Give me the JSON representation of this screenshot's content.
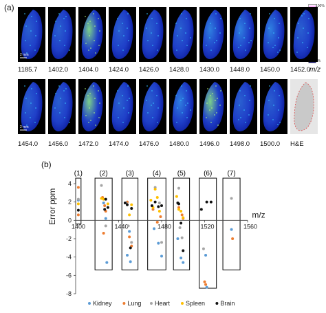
{
  "panel_a_label": "(a)",
  "panel_b_label": "(b)",
  "scale_bar_label": "2 mm",
  "mz_unit": "m/z",
  "colorbar": {
    "top_label": "100%",
    "bottom_label": "0%"
  },
  "row1_labels": [
    "1185.7",
    "1402.0",
    "1404.0",
    "1424.0",
    "1426.0",
    "1428.0",
    "1430.0",
    "1448.0",
    "1450.0",
    "1452.0"
  ],
  "row2_labels": [
    "1454.0",
    "1456.0",
    "1472.0",
    "1474.0",
    "1476.0",
    "1480.0",
    "1496.0",
    "1498.0",
    "1500.0",
    "H&E"
  ],
  "row1_intensity": [
    0.25,
    0.3,
    0.55,
    0.22,
    0.24,
    0.3,
    0.32,
    0.35,
    0.33,
    0.3
  ],
  "row2_intensity": [
    0.3,
    0.3,
    0.6,
    0.25,
    0.3,
    0.45,
    0.7,
    0.3,
    0.3
  ],
  "chart_data": {
    "type": "scatter",
    "xlabel": "m/z",
    "ylabel": "Error ppm",
    "xlim": [
      1400,
      1560
    ],
    "ylim": [
      -8,
      4
    ],
    "xticks": [
      1400,
      1440,
      1480,
      1520,
      1560
    ],
    "yticks": [
      4,
      2,
      0,
      -2,
      -4,
      -6,
      -8
    ],
    "group_labels": [
      "(1)",
      "(2)",
      "(3)",
      "(4)",
      "(5)",
      "(6)",
      "(7)"
    ],
    "legend": [
      "Kidney",
      "Lung",
      "Heart",
      "Spleen",
      "Brain"
    ],
    "colors": {
      "Kidney": "#5b9bd5",
      "Lung": "#ed7d31",
      "Heart": "#a5a5a5",
      "Spleen": "#ffc000",
      "Brain": "#111111"
    },
    "series": [
      {
        "name": "Kidney",
        "points": [
          [
            1402.5,
            2.2
          ],
          [
            1426,
            1.9
          ],
          [
            1428,
            0.2
          ],
          [
            1429,
            -4.6
          ],
          [
            1448,
            -3.8
          ],
          [
            1451,
            -4.5
          ],
          [
            1450,
            -1.2
          ],
          [
            1473,
            -0.9
          ],
          [
            1477,
            -2.5
          ],
          [
            1480,
            -3.9
          ],
          [
            1495,
            -2.0
          ],
          [
            1498,
            -4.1
          ],
          [
            1500,
            -4.6
          ],
          [
            1521,
            -3.8
          ],
          [
            1522,
            -7.3
          ],
          [
            1545,
            -1.0
          ]
        ]
      },
      {
        "name": "Lung",
        "points": [
          [
            1402.5,
            3.6
          ],
          [
            1402.5,
            0.6
          ],
          [
            1425,
            2.5
          ],
          [
            1427,
            1.6
          ],
          [
            1428,
            1.0
          ],
          [
            1426,
            -1.4
          ],
          [
            1448,
            2.0
          ],
          [
            1450,
            -1.8
          ],
          [
            1452,
            -2.8
          ],
          [
            1472,
            1.2
          ],
          [
            1476,
            -0.2
          ],
          [
            1479,
            0.4
          ],
          [
            1496,
            1.4
          ],
          [
            1499,
            0.6
          ],
          [
            1500,
            0.2
          ],
          [
            1520,
            -6.7
          ],
          [
            1521,
            -7.0
          ],
          [
            1546,
            -2.0
          ]
        ]
      },
      {
        "name": "Heart",
        "points": [
          [
            1402.5,
            2.3
          ],
          [
            1424,
            3.8
          ],
          [
            1428,
            -0.6
          ],
          [
            1447,
            1.9
          ],
          [
            1449,
            -0.6
          ],
          [
            1452,
            -2.4
          ],
          [
            1474,
            3.6
          ],
          [
            1478,
            1.9
          ],
          [
            1480,
            -2.4
          ],
          [
            1496,
            3.5
          ],
          [
            1497,
            -0.8
          ],
          [
            1499,
            -1.9
          ],
          [
            1519,
            -3.1
          ],
          [
            1545,
            2.4
          ]
        ]
      },
      {
        "name": "Spleen",
        "points": [
          [
            1402.5,
            1.8
          ],
          [
            1424,
            2.4
          ],
          [
            1426,
            2.3
          ],
          [
            1430,
            1.8
          ],
          [
            1450,
            0.6
          ],
          [
            1452,
            1.7
          ],
          [
            1470,
            2.2
          ],
          [
            1472,
            1.4
          ],
          [
            1474,
            3.4
          ],
          [
            1476,
            2.5
          ],
          [
            1478,
            1.0
          ],
          [
            1494,
            2.6
          ],
          [
            1496,
            1.2
          ],
          [
            1498,
            1.0
          ],
          [
            1500,
            0.3
          ]
        ]
      },
      {
        "name": "Brain",
        "points": [
          [
            1402.5,
            1.1
          ],
          [
            1428,
            2.3
          ],
          [
            1430,
            1.4
          ],
          [
            1427,
            1.2
          ],
          [
            1446,
            1.9
          ],
          [
            1448,
            1.7
          ],
          [
            1452,
            1.3
          ],
          [
            1451,
            -3.0
          ],
          [
            1471,
            1.6
          ],
          [
            1474,
            2.0
          ],
          [
            1477,
            1.5
          ],
          [
            1480,
            1.6
          ],
          [
            1495,
            1.9
          ],
          [
            1496,
            1.8
          ],
          [
            1498,
            -0.3
          ],
          [
            1500,
            -3.3
          ],
          [
            1517,
            1.2
          ],
          [
            1522,
            2.0
          ],
          [
            1526,
            2.0
          ]
        ]
      }
    ]
  }
}
